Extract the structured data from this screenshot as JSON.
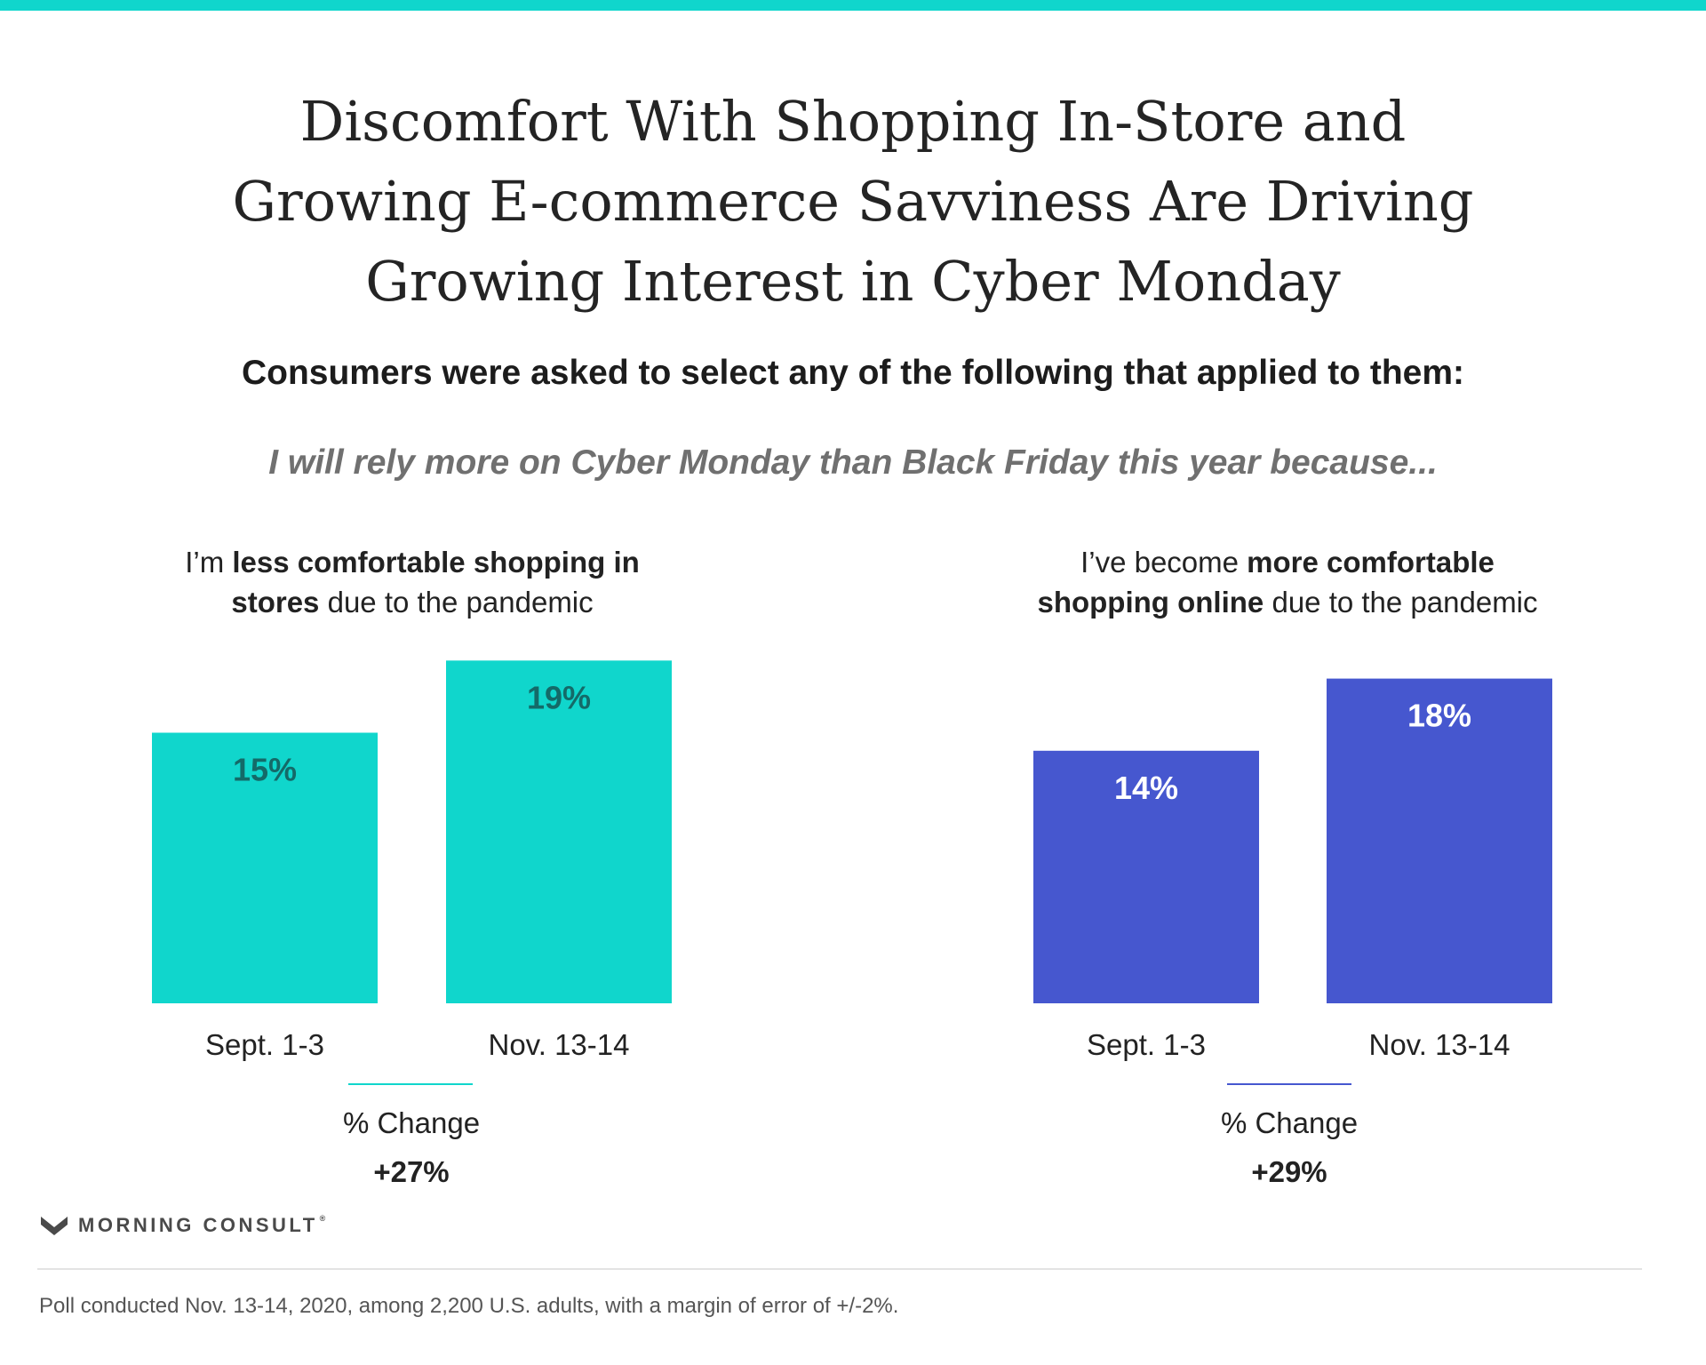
{
  "title_lines": [
    "Discomfort With Shopping In-Store and",
    "Growing E-commerce Savviness Are Driving",
    "Growing Interest in Cyber Monday"
  ],
  "subtitle": "Consumers were asked to select any of the following that applied to them:",
  "question": "I will rely more on Cyber Monday than Black Friday this year because...",
  "panels": [
    {
      "title_line1": [
        "I’m ",
        "less comfortable shopping in"
      ],
      "title_line2": [
        "stores",
        " due to the pandemic"
      ],
      "change_label": "% Change",
      "change_value": "+27%"
    },
    {
      "title_line1": [
        "I’ve become ",
        "more comfortable"
      ],
      "title_line2": [
        "shopping online",
        " due to the pandemic"
      ],
      "change_label": "% Change",
      "change_value": "+29%"
    }
  ],
  "chart_data": [
    {
      "type": "bar",
      "categories": [
        "Sept. 1-3",
        "Nov. 13-14"
      ],
      "values": [
        15,
        19
      ],
      "value_labels": [
        "15%",
        "19%"
      ],
      "color": "#10d6cc",
      "label_color": "#146a68"
    },
    {
      "type": "bar",
      "categories": [
        "Sept. 1-3",
        "Nov. 13-14"
      ],
      "values": [
        14,
        18
      ],
      "value_labels": [
        "14%",
        "18%"
      ],
      "color": "#4657cf",
      "label_color": "#ffffff"
    }
  ],
  "brand": {
    "name": "MORNING CONSULT",
    "mark": "®"
  },
  "footnote": "Poll conducted Nov. 13-14, 2020, among 2,200 U.S. adults, with a margin of error of +/-2%."
}
